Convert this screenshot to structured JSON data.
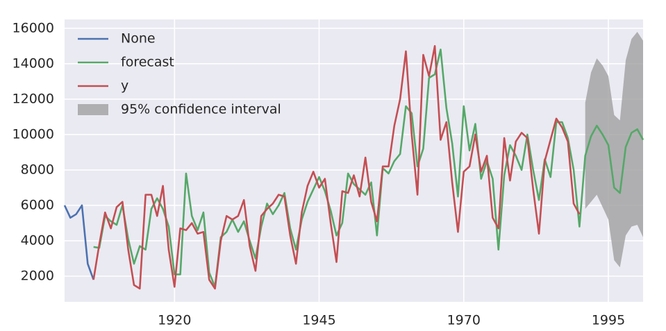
{
  "chart_data": {
    "type": "line",
    "xlim": [
      1901,
      2001
    ],
    "ylim": [
      550,
      16500
    ],
    "xticks": [
      1920,
      1945,
      1970,
      1995
    ],
    "yticks": [
      2000,
      4000,
      6000,
      8000,
      10000,
      12000,
      14000,
      16000
    ],
    "grid": true,
    "legend": "upper left",
    "series": [
      {
        "name": "None",
        "color": "#4c72b0",
        "x": [
          1901,
          1902,
          1903,
          1904,
          1905,
          1906
        ],
        "values": [
          6000,
          5300,
          5500,
          6000,
          2700,
          1800
        ]
      },
      {
        "name": "forecast",
        "color": "#55a868",
        "x": [
          1906,
          1907,
          1908,
          1909,
          1910,
          1911,
          1912,
          1913,
          1914,
          1915,
          1916,
          1917,
          1918,
          1919,
          1920,
          1921,
          1922,
          1923,
          1924,
          1925,
          1926,
          1927,
          1928,
          1929,
          1930,
          1931,
          1932,
          1933,
          1934,
          1935,
          1936,
          1937,
          1938,
          1939,
          1940,
          1941,
          1942,
          1943,
          1944,
          1945,
          1946,
          1947,
          1948,
          1949,
          1950,
          1951,
          1952,
          1953,
          1954,
          1955,
          1956,
          1957,
          1958,
          1959,
          1960,
          1961,
          1962,
          1963,
          1964,
          1965,
          1966,
          1967,
          1968,
          1969,
          1970,
          1971,
          1972,
          1973,
          1974,
          1975,
          1976,
          1977,
          1978,
          1979,
          1980,
          1981,
          1982,
          1983,
          1984,
          1985,
          1986,
          1987,
          1988,
          1989,
          1990,
          1991,
          1992,
          1993,
          1994,
          1995,
          1996,
          1997,
          1998,
          1999,
          2000,
          2001
        ],
        "values": [
          3650,
          3600,
          5400,
          5100,
          4900,
          6000,
          4100,
          2700,
          3700,
          3500,
          5800,
          6400,
          5800,
          4800,
          2100,
          2100,
          7800,
          5400,
          4600,
          5600,
          2200,
          1400,
          4200,
          4500,
          5200,
          4500,
          5100,
          4000,
          3000,
          4800,
          6100,
          5500,
          6000,
          6700,
          4700,
          3500,
          5200,
          6200,
          6900,
          7600,
          6800,
          5700,
          4300,
          5000,
          7800,
          7200,
          6900,
          6600,
          7300,
          4300,
          8100,
          7800,
          8500,
          8900,
          11600,
          11200,
          8200,
          9200,
          13200,
          13400,
          14800,
          11500,
          9500,
          6500,
          11600,
          9100,
          10600,
          7500,
          8500,
          7500,
          3500,
          7700,
          9400,
          8800,
          8000,
          10000,
          8000,
          6300,
          8600,
          7600,
          10700,
          10700,
          9800,
          8000,
          4800,
          8800,
          9900,
          10500,
          10000,
          9400,
          7000,
          6700,
          9300,
          10100,
          10300,
          9700
        ]
      },
      {
        "name": "y",
        "color": "#c44e52",
        "x": [
          1906,
          1907,
          1908,
          1909,
          1910,
          1911,
          1912,
          1913,
          1914,
          1915,
          1916,
          1917,
          1918,
          1919,
          1920,
          1921,
          1922,
          1923,
          1924,
          1925,
          1926,
          1927,
          1928,
          1929,
          1930,
          1931,
          1932,
          1933,
          1934,
          1935,
          1936,
          1937,
          1938,
          1939,
          1940,
          1941,
          1942,
          1943,
          1944,
          1945,
          1946,
          1947,
          1948,
          1949,
          1950,
          1951,
          1952,
          1953,
          1954,
          1955,
          1956,
          1957,
          1958,
          1959,
          1960,
          1961,
          1962,
          1963,
          1964,
          1965,
          1966,
          1967,
          1968,
          1969,
          1970,
          1971,
          1972,
          1973,
          1974,
          1975,
          1976,
          1977,
          1978,
          1979,
          1980,
          1981,
          1982,
          1983,
          1984,
          1985,
          1986,
          1987,
          1988,
          1989,
          1990
        ],
        "values": [
          1800,
          3800,
          5600,
          4700,
          5900,
          6200,
          3500,
          1500,
          1300,
          6600,
          6600,
          5400,
          7100,
          3500,
          1400,
          4700,
          4600,
          5000,
          4400,
          4500,
          1800,
          1300,
          4000,
          5400,
          5200,
          5400,
          6300,
          3700,
          2300,
          5400,
          5800,
          6100,
          6600,
          6500,
          4300,
          2700,
          5600,
          7100,
          7900,
          7000,
          7500,
          5000,
          2800,
          6800,
          6700,
          7700,
          6500,
          8700,
          6200,
          5100,
          8200,
          8200,
          10500,
          12000,
          14700,
          10000,
          6600,
          14500,
          13300,
          15000,
          9700,
          10700,
          7300,
          4500,
          7900,
          8200,
          10000,
          7900,
          8800,
          5300,
          4700,
          9800,
          7400,
          9600,
          10100,
          9800,
          6900,
          4400,
          8500,
          9700,
          10900,
          10400,
          9600,
          6100,
          5500
        ]
      }
    ],
    "confidence_interval": {
      "name": "95% confidence interval",
      "color": "#a0a0a0",
      "x": [
        1991,
        1992,
        1993,
        1994,
        1995,
        1996,
        1997,
        1998,
        1999,
        2000,
        2001
      ],
      "lower": [
        5800,
        6200,
        6600,
        5900,
        5200,
        2900,
        2500,
        4300,
        4800,
        4900,
        4200
      ],
      "upper": [
        11800,
        13500,
        14300,
        13900,
        13300,
        11100,
        10800,
        14200,
        15400,
        15800,
        15300
      ]
    }
  }
}
